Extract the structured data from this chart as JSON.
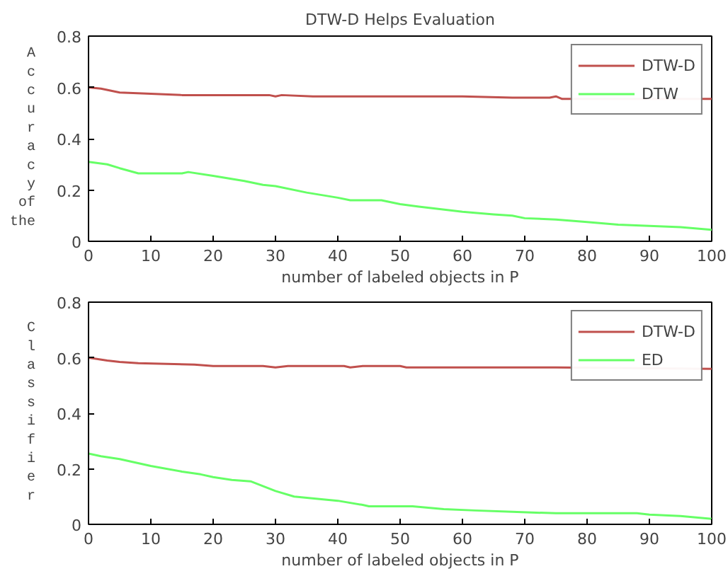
{
  "chart_data": [
    {
      "type": "line",
      "title": "DTW-D Helps Evaluation",
      "xlabel": "number of labeled objects in P",
      "ylabel": "Accuracy of the",
      "xlim": [
        0,
        100
      ],
      "xticks": [
        0,
        10,
        20,
        30,
        40,
        50,
        60,
        70,
        80,
        90,
        100
      ],
      "ylim": [
        0,
        0.8
      ],
      "yticks": [
        0,
        0.2,
        0.4,
        0.6,
        0.8
      ],
      "grid": false,
      "legend": "top right",
      "marker": "none",
      "line_style": "solid",
      "series": [
        {
          "name": "DTW-D",
          "color": "#c0504d",
          "x": [
            0,
            2,
            5,
            10,
            15,
            29,
            30,
            31,
            36,
            60,
            68,
            74,
            75,
            76,
            100
          ],
          "values": [
            0.6,
            0.595,
            0.58,
            0.575,
            0.57,
            0.57,
            0.565,
            0.57,
            0.565,
            0.565,
            0.56,
            0.56,
            0.565,
            0.555,
            0.555
          ]
        },
        {
          "name": "DTW",
          "color": "#66ff66",
          "x": [
            0,
            3,
            5,
            8,
            15,
            16,
            20,
            25,
            28,
            30,
            35,
            40,
            42,
            47,
            50,
            53,
            60,
            65,
            68,
            70,
            75,
            80,
            85,
            90,
            95,
            100
          ],
          "values": [
            0.31,
            0.3,
            0.285,
            0.265,
            0.265,
            0.27,
            0.255,
            0.235,
            0.22,
            0.215,
            0.19,
            0.17,
            0.16,
            0.16,
            0.145,
            0.135,
            0.115,
            0.105,
            0.1,
            0.09,
            0.085,
            0.075,
            0.065,
            0.06,
            0.055,
            0.045
          ]
        }
      ]
    },
    {
      "type": "line",
      "xlabel": "number of labeled objects in P",
      "ylabel": "Classifier",
      "xlim": [
        0,
        100
      ],
      "xticks": [
        0,
        10,
        20,
        30,
        40,
        50,
        60,
        70,
        80,
        90,
        100
      ],
      "ylim": [
        0,
        0.8
      ],
      "yticks": [
        0,
        0.2,
        0.4,
        0.6,
        0.8
      ],
      "grid": false,
      "legend": "top right",
      "marker": "none",
      "line_style": "solid",
      "series": [
        {
          "name": "DTW-D",
          "color": "#c0504d",
          "x": [
            0,
            3,
            5,
            8,
            17,
            20,
            28,
            30,
            32,
            41,
            42,
            44,
            50,
            51,
            75,
            100
          ],
          "values": [
            0.6,
            0.59,
            0.585,
            0.58,
            0.575,
            0.57,
            0.57,
            0.565,
            0.57,
            0.57,
            0.565,
            0.57,
            0.57,
            0.565,
            0.565,
            0.56
          ]
        },
        {
          "name": "ED",
          "color": "#66ff66",
          "x": [
            0,
            2,
            5,
            10,
            15,
            18,
            20,
            23,
            26,
            30,
            33,
            40,
            44,
            45,
            52,
            57,
            62,
            68,
            75,
            88,
            90,
            95,
            100
          ],
          "values": [
            0.255,
            0.245,
            0.235,
            0.21,
            0.19,
            0.18,
            0.17,
            0.16,
            0.155,
            0.12,
            0.1,
            0.085,
            0.07,
            0.065,
            0.065,
            0.055,
            0.05,
            0.045,
            0.04,
            0.04,
            0.035,
            0.03,
            0.02
          ]
        }
      ]
    }
  ]
}
